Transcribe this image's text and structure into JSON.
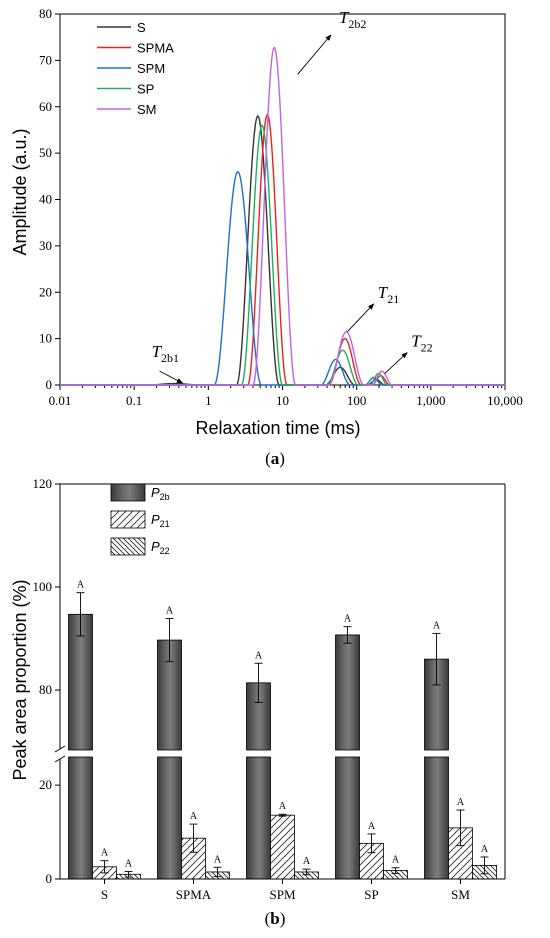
{
  "panel_a_caption": {
    "pre": "(",
    "bold": "a",
    "post": ")"
  },
  "panel_b_caption": {
    "pre": "(",
    "bold": "b",
    "post": ")"
  },
  "chart_data": [
    {
      "type": "line",
      "xlabel": "Relaxation time (ms)",
      "ylabel": "Amplitude (a.u.)",
      "xscale": "log",
      "xlim": [
        0.01,
        10000
      ],
      "ylim": [
        0,
        80
      ],
      "xticks": [
        "0.01",
        "0.1",
        "1",
        "10",
        "100",
        "1,000",
        "10,000"
      ],
      "xtick_values": [
        0.01,
        0.1,
        1,
        10,
        100,
        1000,
        10000
      ],
      "yticks": [
        0,
        10,
        20,
        30,
        40,
        50,
        60,
        70,
        80
      ],
      "legend_position": "top-left",
      "series": [
        {
          "name": "S",
          "color": "#333333",
          "peaks": [
            {
              "from": 0.15,
              "to": 0.8,
              "max": 0.3
            },
            {
              "from": 2.4,
              "to": 9.0,
              "max": 58
            },
            {
              "from": 38,
              "to": 95,
              "max": 3.8
            },
            {
              "from": 140,
              "to": 240,
              "max": 1.2
            }
          ]
        },
        {
          "name": "SPMA",
          "color": "#e8231f",
          "peaks": [
            {
              "from": 3.4,
              "to": 11.5,
              "max": 58.3
            },
            {
              "from": 42,
              "to": 115,
              "max": 10
            },
            {
              "from": 160,
              "to": 280,
              "max": 2
            }
          ]
        },
        {
          "name": "SPM",
          "color": "#1f6fd0",
          "peaks": [
            {
              "from": 1.2,
              "to": 5.2,
              "max": 46
            },
            {
              "from": 33,
              "to": 82,
              "max": 5.5
            },
            {
              "from": 130,
              "to": 220,
              "max": 1.6
            }
          ]
        },
        {
          "name": "SP",
          "color": "#1fb05a",
          "peaks": [
            {
              "from": 2.8,
              "to": 10,
              "max": 56
            },
            {
              "from": 40,
              "to": 105,
              "max": 7.5
            },
            {
              "from": 150,
              "to": 260,
              "max": 2.5
            }
          ]
        },
        {
          "name": "SM",
          "color": "#c163e8",
          "peaks": [
            {
              "from": 4.0,
              "to": 15,
              "max": 72.8
            },
            {
              "from": 42,
              "to": 125,
              "max": 11.5
            },
            {
              "from": 160,
              "to": 300,
              "max": 3
            }
          ]
        }
      ],
      "annotations": [
        {
          "base": "T",
          "sub": "2b1",
          "arrow_from": [
            0.22,
            3.0
          ],
          "arrow_to": [
            0.45,
            0.4
          ]
        },
        {
          "base": "T",
          "sub": "2b2",
          "arrow_from": [
            16,
            67
          ],
          "arrow_to": [
            45,
            75.5
          ]
        },
        {
          "base": "T",
          "sub": "21",
          "arrow_from": [
            75,
            11.5
          ],
          "arrow_to": [
            170,
            17.5
          ]
        },
        {
          "base": "T",
          "sub": "22",
          "arrow_from": [
            240,
            2.5
          ],
          "arrow_to": [
            480,
            7.0
          ]
        }
      ]
    },
    {
      "type": "bar",
      "ylabel": "Peak area proportion (%)",
      "categories": [
        "S",
        "SPMA",
        "SPM",
        "SP",
        "SM"
      ],
      "y_axis_break": {
        "lower": [
          0,
          26
        ],
        "upper": [
          67,
          120
        ]
      },
      "yticks": [
        0,
        20,
        80,
        100,
        120
      ],
      "legend_position": "top-left",
      "series": [
        {
          "name": "P",
          "name_sub": "2b",
          "pattern": "solid-gray",
          "values": [
            94.7,
            89.7,
            81.4,
            90.7,
            86.0
          ],
          "errors": [
            4.2,
            4.2,
            3.8,
            1.6,
            5.0
          ],
          "significance": [
            "A",
            "A",
            "A",
            "A",
            "A"
          ]
        },
        {
          "name": "P",
          "name_sub": "21",
          "pattern": "hatch-forward",
          "values": [
            2.6,
            8.7,
            13.6,
            7.6,
            10.9
          ],
          "errors": [
            1.3,
            3.0,
            0.2,
            2.0,
            3.8
          ],
          "significance": [
            "A",
            "A",
            "A",
            "A",
            "A"
          ]
        },
        {
          "name": "P",
          "name_sub": "22",
          "pattern": "hatch-backward",
          "values": [
            1.0,
            1.5,
            1.5,
            1.8,
            2.9
          ],
          "errors": [
            0.6,
            1.0,
            0.6,
            0.6,
            1.8
          ],
          "significance": [
            "A",
            "A",
            "A",
            "A",
            "A"
          ]
        }
      ]
    }
  ]
}
